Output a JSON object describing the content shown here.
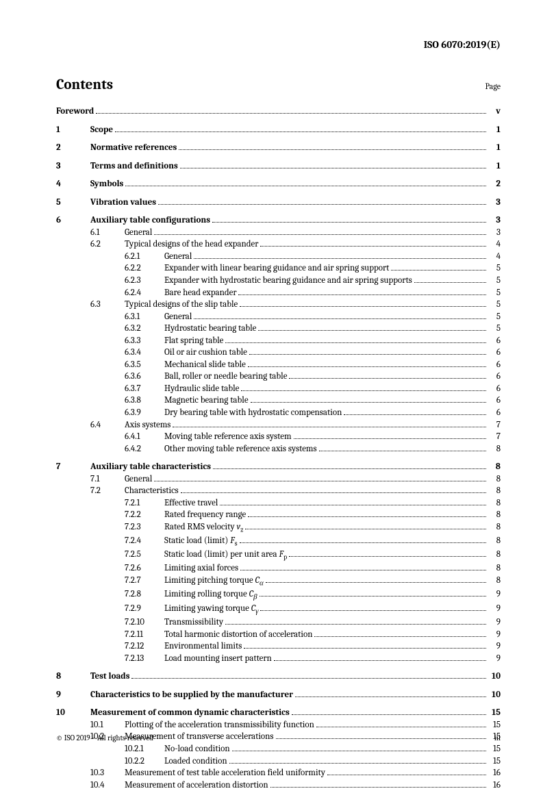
{
  "header": "ISO 6070:2019(E)",
  "title": "Contents",
  "page_label": "Page",
  "footer_left": "© ISO 2019 – All rights reserved",
  "footer_right": "iii",
  "toc": {
    "foreword": {
      "label": "Foreword",
      "page": "v"
    },
    "s1": {
      "num": "1",
      "label": "Scope",
      "page": "1"
    },
    "s2": {
      "num": "2",
      "label": "Normative references",
      "page": "1"
    },
    "s3": {
      "num": "3",
      "label": "Terms and definitions",
      "page": "1"
    },
    "s4": {
      "num": "4",
      "label": "Symbols",
      "page": "2"
    },
    "s5": {
      "num": "5",
      "label": "Vibration values",
      "page": "3"
    },
    "s6": {
      "num": "6",
      "label": "Auxiliary table configurations",
      "page": "3"
    },
    "s6_1": {
      "num": "6.1",
      "label": "General",
      "page": "3"
    },
    "s6_2": {
      "num": "6.2",
      "label": "Typical designs of the head expander",
      "page": "4"
    },
    "s6_2_1": {
      "num": "6.2.1",
      "label": "General",
      "page": "4"
    },
    "s6_2_2": {
      "num": "6.2.2",
      "label": "Expander with linear bearing guidance and air spring support",
      "page": "5"
    },
    "s6_2_3": {
      "num": "6.2.3",
      "label": "Expander with hydrostatic bearing guidance and air spring supports",
      "page": "5"
    },
    "s6_2_4": {
      "num": "6.2.4",
      "label": "Bare head expander",
      "page": "5"
    },
    "s6_3": {
      "num": "6.3",
      "label": "Typical designs of the slip table",
      "page": "5"
    },
    "s6_3_1": {
      "num": "6.3.1",
      "label": "General",
      "page": "5"
    },
    "s6_3_2": {
      "num": "6.3.2",
      "label": "Hydrostatic bearing table",
      "page": "5"
    },
    "s6_3_3": {
      "num": "6.3.3",
      "label": "Flat spring table",
      "page": "6"
    },
    "s6_3_4": {
      "num": "6.3.4",
      "label": "Oil or air cushion table",
      "page": "6"
    },
    "s6_3_5": {
      "num": "6.3.5",
      "label": "Mechanical slide table",
      "page": "6"
    },
    "s6_3_6": {
      "num": "6.3.6",
      "label": "Ball, roller or needle bearing table",
      "page": "6"
    },
    "s6_3_7": {
      "num": "6.3.7",
      "label": "Hydraulic slide table",
      "page": "6"
    },
    "s6_3_8": {
      "num": "6.3.8",
      "label": "Magnetic bearing table",
      "page": "6"
    },
    "s6_3_9": {
      "num": "6.3.9",
      "label": "Dry bearing table with hydrostatic compensation",
      "page": "6"
    },
    "s6_4": {
      "num": "6.4",
      "label": "Axis systems",
      "page": "7"
    },
    "s6_4_1": {
      "num": "6.4.1",
      "label": "Moving table reference axis system",
      "page": "7"
    },
    "s6_4_2": {
      "num": "6.4.2",
      "label": "Other moving table reference axis systems",
      "page": "8"
    },
    "s7": {
      "num": "7",
      "label": "Auxiliary table characteristics",
      "page": "8"
    },
    "s7_1": {
      "num": "7.1",
      "label": "General",
      "page": "8"
    },
    "s7_2": {
      "num": "7.2",
      "label": "Characteristics",
      "page": "8"
    },
    "s7_2_1": {
      "num": "7.2.1",
      "label": "Effective travel",
      "page": "8"
    },
    "s7_2_2": {
      "num": "7.2.2",
      "label": "Rated frequency range",
      "page": "8"
    },
    "s7_2_3": {
      "num": "7.2.3",
      "page": "8"
    },
    "s7_2_4": {
      "num": "7.2.4",
      "page": "8"
    },
    "s7_2_5": {
      "num": "7.2.5",
      "page": "8"
    },
    "s7_2_6": {
      "num": "7.2.6",
      "label": "Limiting axial forces",
      "page": "8"
    },
    "s7_2_7": {
      "num": "7.2.7",
      "page": "8"
    },
    "s7_2_8": {
      "num": "7.2.8",
      "page": "9"
    },
    "s7_2_9": {
      "num": "7.2.9",
      "page": "9"
    },
    "s7_2_10": {
      "num": "7.2.10",
      "label": "Transmissibility",
      "page": "9"
    },
    "s7_2_11": {
      "num": "7.2.11",
      "label": "Total harmonic distortion of acceleration",
      "page": "9"
    },
    "s7_2_12": {
      "num": "7.2.12",
      "label": "Environmental limits",
      "page": "9"
    },
    "s7_2_13": {
      "num": "7.2.13",
      "label": "Load mounting insert pattern",
      "page": "9"
    },
    "s8": {
      "num": "8",
      "label": "Test loads",
      "page": "10"
    },
    "s9": {
      "num": "9",
      "label": "Characteristics to be supplied by the manufacturer",
      "page": "10"
    },
    "s10": {
      "num": "10",
      "label": "Measurement of common dynamic characteristics",
      "page": "15"
    },
    "s10_1": {
      "num": "10.1",
      "label": "Plotting of the acceleration transmissibility function",
      "page": "15"
    },
    "s10_2": {
      "num": "10.2",
      "label": "Measurement of transverse accelerations",
      "page": "15"
    },
    "s10_2_1": {
      "num": "10.2.1",
      "label": "No-load condition",
      "page": "15"
    },
    "s10_2_2": {
      "num": "10.2.2",
      "label": "Loaded condition",
      "page": "15"
    },
    "s10_3": {
      "num": "10.3",
      "label": "Measurement of test table acceleration field uniformity",
      "page": "16"
    },
    "s10_4": {
      "num": "10.4",
      "label": "Measurement of acceleration distortion",
      "page": "16"
    }
  }
}
